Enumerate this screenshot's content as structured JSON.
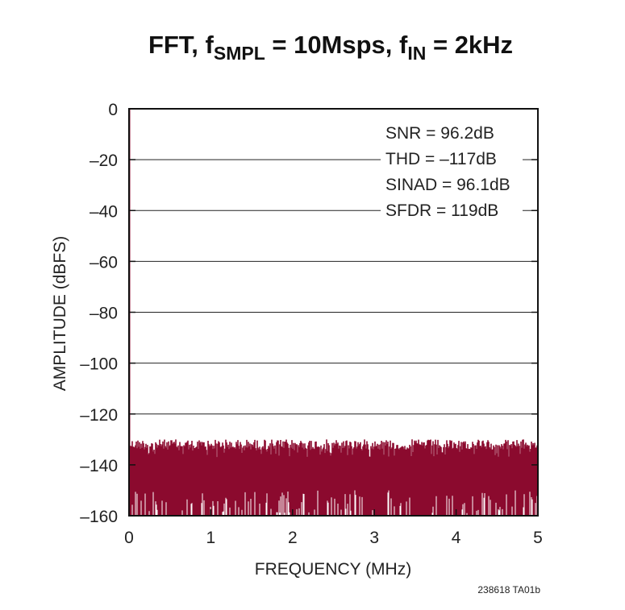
{
  "chart_data": {
    "type": "line",
    "title": {
      "parts": [
        {
          "text": "FFT, f",
          "sub": false
        },
        {
          "text": "SMPL",
          "sub": true
        },
        {
          "text": " = 10Msps, f",
          "sub": false
        },
        {
          "text": "IN",
          "sub": true
        },
        {
          "text": " = 2kHz",
          "sub": false
        }
      ]
    },
    "xlabel": "FREQUENCY (MHz)",
    "ylabel": "AMPLITUDE (dBFS)",
    "xlim": [
      0,
      5
    ],
    "ylim": [
      -160,
      0
    ],
    "xticks": [
      0,
      1,
      2,
      3,
      4,
      5
    ],
    "yticks": [
      0,
      -20,
      -40,
      -60,
      -80,
      -100,
      -120,
      -140,
      -160
    ],
    "ytick_labels": [
      "0",
      "–20",
      "–40",
      "–60",
      "–80",
      "–100",
      "–120",
      "–140",
      "–160"
    ],
    "grid": "horizontal",
    "series": [
      {
        "fundamental": {
          "x": 0.002,
          "y": 0
        },
        "noise_floor_top": -130,
        "noise_floor_bottom": -160,
        "color": "#8b0a2e"
      }
    ],
    "annotations": [
      "SNR = 96.2dB",
      "THD = –117dB",
      "SINAD = 96.1dB",
      "SFDR = 119dB"
    ],
    "annotation_position": "top-right"
  },
  "figure_code": "238618 TA01b"
}
